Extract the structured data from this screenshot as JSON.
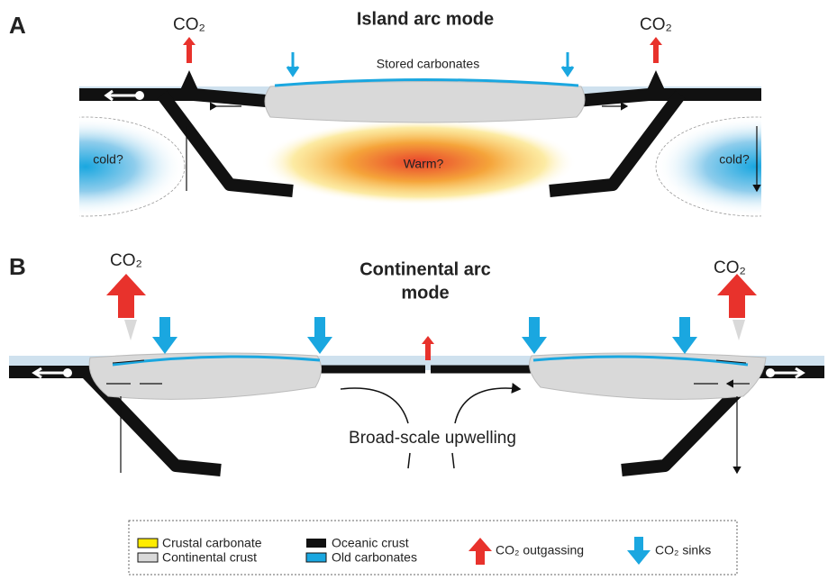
{
  "panel_a": {
    "label": "A",
    "title": "Island arc mode",
    "co2_left": "CO₂",
    "co2_right": "CO₂",
    "stored": "Stored carbonates",
    "cold_left": "cold?",
    "cold_right": "cold?",
    "warm": "Warm?"
  },
  "panel_b": {
    "label": "B",
    "title_line1": "Continental arc",
    "title_line2": "mode",
    "co2_left": "CO₂",
    "co2_right": "CO₂",
    "upwelling": "Broad-scale upwelling"
  },
  "legend": {
    "crustal_carbonate": "Crustal carbonate",
    "continental_crust": "Continental crust",
    "oceanic_crust": "Oceanic crust",
    "old_carbonates": "Old carbonates",
    "outgassing": "CO₂ outgassing",
    "sinks": "CO₂ sinks"
  }
}
